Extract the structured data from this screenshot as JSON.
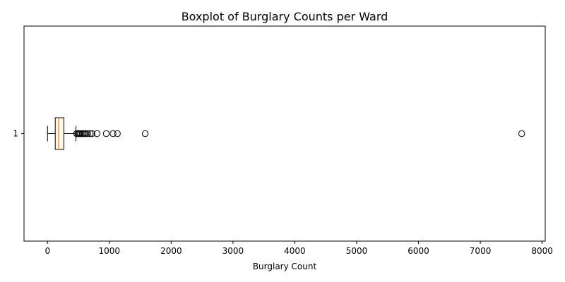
{
  "chart_data": {
    "type": "boxplot",
    "orientation": "horizontal",
    "title": "Boxplot of Burglary Counts per Ward",
    "xlabel": "Burglary Count",
    "ylabel": "",
    "xlim": [
      -380,
      8050
    ],
    "xticks": [
      0,
      1000,
      2000,
      3000,
      4000,
      5000,
      6000,
      7000,
      8000
    ],
    "xtick_labels": [
      "0",
      "1000",
      "2000",
      "3000",
      "4000",
      "5000",
      "6000",
      "7000",
      "8000"
    ],
    "categories": [
      "1"
    ],
    "series": [
      {
        "whisker_low": 0,
        "q1": 125,
        "median": 180,
        "q3": 265,
        "whisker_high": 460,
        "outliers": [
          470,
          490,
          505,
          520,
          535,
          560,
          580,
          600,
          620,
          650,
          690,
          720,
          800,
          950,
          1060,
          1130,
          1580,
          7670
        ]
      }
    ],
    "colors": {
      "box_fill": "#fdf8ee",
      "box_edge": "#000000",
      "median": "#ff7f0e",
      "outlier_edge": "#000000"
    },
    "grid": false,
    "legend": "none"
  }
}
